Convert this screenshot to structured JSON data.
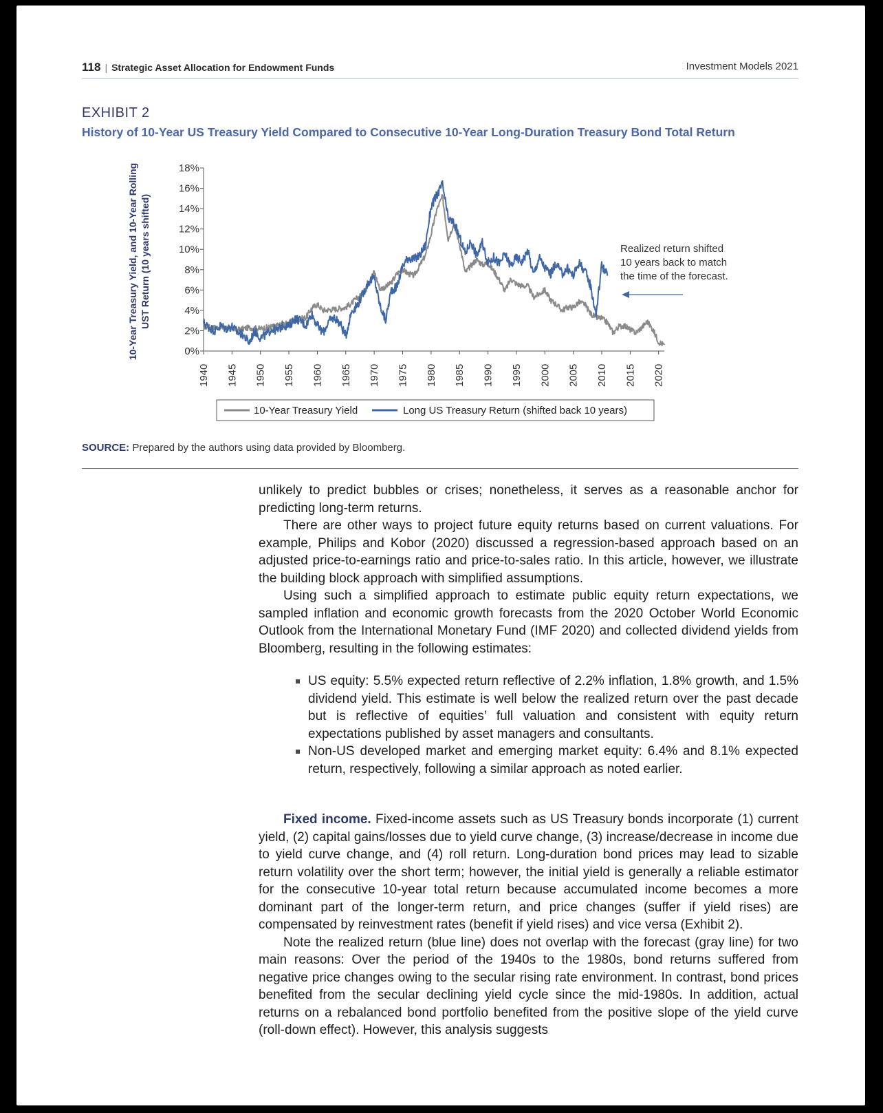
{
  "header": {
    "page_number": "118",
    "running_title": "Strategic Asset Allocation for Endowment Funds",
    "journal": "Investment Models 2021"
  },
  "exhibit": {
    "label": "EXHIBIT 2",
    "title": "History of 10-Year US Treasury Yield Compared to Consecutive 10-Year Long-Duration Treasury Bond Total Return"
  },
  "chart_data": {
    "type": "line",
    "ylabel_line1": "10-Year Treasury Yield, and 10-Year Rolling",
    "ylabel_line2": "UST Return (10 years shifted)",
    "ylim": [
      0,
      18
    ],
    "yticks": [
      "0%",
      "2%",
      "4%",
      "6%",
      "8%",
      "10%",
      "12%",
      "14%",
      "16%",
      "18%"
    ],
    "xlim": [
      1940,
      2021
    ],
    "xticks": [
      "1940",
      "1945",
      "1950",
      "1955",
      "1960",
      "1965",
      "1970",
      "1975",
      "1980",
      "1985",
      "1990",
      "1995",
      "2000",
      "2005",
      "2010",
      "2015",
      "2020"
    ],
    "legend_position": "bottom",
    "annotation": {
      "line1": "Realized return shifted",
      "line2": "10 years back to match",
      "line3": "the time of the forecast."
    },
    "series": [
      {
        "name": "10-Year Treasury Yield",
        "color": "#8a8a8a",
        "points": [
          [
            1940,
            2.4
          ],
          [
            1942,
            2.3
          ],
          [
            1944,
            2.3
          ],
          [
            1946,
            2.1
          ],
          [
            1948,
            2.3
          ],
          [
            1950,
            2.2
          ],
          [
            1952,
            2.4
          ],
          [
            1954,
            2.6
          ],
          [
            1956,
            3.0
          ],
          [
            1958,
            3.3
          ],
          [
            1959,
            4.2
          ],
          [
            1960,
            4.6
          ],
          [
            1961,
            4.0
          ],
          [
            1963,
            4.1
          ],
          [
            1965,
            4.3
          ],
          [
            1966,
            4.7
          ],
          [
            1967,
            5.2
          ],
          [
            1968,
            5.6
          ],
          [
            1969,
            6.7
          ],
          [
            1970,
            7.8
          ],
          [
            1971,
            6.1
          ],
          [
            1972,
            6.3
          ],
          [
            1973,
            6.7
          ],
          [
            1974,
            7.6
          ],
          [
            1975,
            8.0
          ],
          [
            1976,
            7.6
          ],
          [
            1977,
            7.4
          ],
          [
            1978,
            8.4
          ],
          [
            1979,
            9.4
          ],
          [
            1980,
            11.5
          ],
          [
            1981,
            13.9
          ],
          [
            1982,
            15.2
          ],
          [
            1983,
            11.0
          ],
          [
            1984,
            12.5
          ],
          [
            1985,
            10.6
          ],
          [
            1986,
            7.7
          ],
          [
            1987,
            8.4
          ],
          [
            1988,
            9.0
          ],
          [
            1989,
            8.5
          ],
          [
            1990,
            8.6
          ],
          [
            1991,
            7.9
          ],
          [
            1992,
            7.0
          ],
          [
            1993,
            5.9
          ],
          [
            1994,
            7.1
          ],
          [
            1995,
            6.6
          ],
          [
            1996,
            6.4
          ],
          [
            1997,
            6.4
          ],
          [
            1998,
            5.3
          ],
          [
            1999,
            5.6
          ],
          [
            2000,
            6.0
          ],
          [
            2001,
            5.0
          ],
          [
            2002,
            4.6
          ],
          [
            2003,
            4.0
          ],
          [
            2004,
            4.3
          ],
          [
            2005,
            4.3
          ],
          [
            2006,
            4.8
          ],
          [
            2007,
            4.6
          ],
          [
            2008,
            3.7
          ],
          [
            2009,
            3.3
          ],
          [
            2010,
            3.2
          ],
          [
            2011,
            2.8
          ],
          [
            2012,
            1.8
          ],
          [
            2013,
            2.4
          ],
          [
            2014,
            2.5
          ],
          [
            2015,
            2.1
          ],
          [
            2016,
            1.8
          ],
          [
            2017,
            2.3
          ],
          [
            2018,
            2.9
          ],
          [
            2019,
            2.1
          ],
          [
            2020,
            0.9
          ],
          [
            2021,
            0.6
          ]
        ]
      },
      {
        "name": "Long US Treasury Return (shifted back 10 years)",
        "color": "#3f67a6",
        "points": [
          [
            1940,
            2.8
          ],
          [
            1941,
            2.3
          ],
          [
            1942,
            2.0
          ],
          [
            1943,
            2.5
          ],
          [
            1944,
            2.2
          ],
          [
            1945,
            2.4
          ],
          [
            1946,
            1.8
          ],
          [
            1947,
            1.6
          ],
          [
            1948,
            0.8
          ],
          [
            1949,
            2.0
          ],
          [
            1950,
            1.3
          ],
          [
            1951,
            1.6
          ],
          [
            1952,
            2.2
          ],
          [
            1953,
            2.0
          ],
          [
            1954,
            2.6
          ],
          [
            1955,
            2.4
          ],
          [
            1956,
            3.2
          ],
          [
            1957,
            3.0
          ],
          [
            1958,
            2.5
          ],
          [
            1959,
            3.7
          ],
          [
            1960,
            2.5
          ],
          [
            1961,
            1.8
          ],
          [
            1962,
            2.9
          ],
          [
            1963,
            3.3
          ],
          [
            1964,
            2.7
          ],
          [
            1965,
            1.5
          ],
          [
            1966,
            3.9
          ],
          [
            1967,
            4.5
          ],
          [
            1968,
            5.6
          ],
          [
            1969,
            6.8
          ],
          [
            1970,
            7.2
          ],
          [
            1971,
            4.5
          ],
          [
            1972,
            3.0
          ],
          [
            1973,
            6.0
          ],
          [
            1974,
            6.3
          ],
          [
            1975,
            8.4
          ],
          [
            1976,
            9.2
          ],
          [
            1977,
            9.0
          ],
          [
            1978,
            9.4
          ],
          [
            1979,
            10.4
          ],
          [
            1980,
            14.2
          ],
          [
            1981,
            15.3
          ],
          [
            1982,
            16.4
          ],
          [
            1983,
            13.0
          ],
          [
            1984,
            12.6
          ],
          [
            1985,
            11.2
          ],
          [
            1986,
            9.6
          ],
          [
            1987,
            10.8
          ],
          [
            1988,
            9.4
          ],
          [
            1989,
            10.6
          ],
          [
            1990,
            8.7
          ],
          [
            1991,
            9.2
          ],
          [
            1992,
            8.6
          ],
          [
            1993,
            9.5
          ],
          [
            1994,
            8.4
          ],
          [
            1995,
            9.2
          ],
          [
            1996,
            8.8
          ],
          [
            1997,
            9.9
          ],
          [
            1998,
            7.5
          ],
          [
            1999,
            9.2
          ],
          [
            2000,
            8.2
          ],
          [
            2001,
            7.6
          ],
          [
            2002,
            8.6
          ],
          [
            2003,
            7.6
          ],
          [
            2004,
            8.1
          ],
          [
            2005,
            7.4
          ],
          [
            2006,
            8.7
          ],
          [
            2007,
            7.9
          ],
          [
            2008,
            6.5
          ],
          [
            2009,
            3.6
          ],
          [
            2010,
            8.5
          ],
          [
            2011,
            7.4
          ]
        ]
      }
    ]
  },
  "source": {
    "label": "SOURCE:",
    "text": "Prepared by the authors using data provided by Bloomberg."
  },
  "body": {
    "p1": "unlikely to predict bubbles or crises; nonetheless, it serves as a reasonable anchor for predicting long-term returns.",
    "p2": "There are other ways to project future equity returns based on current valuations. For example, Philips and Kobor (2020) discussed a regression-based approach based on an adjusted price-to-earnings ratio and price-to-sales ratio. In this article, however, we illustrate the building block approach with simplified assumptions.",
    "p3": "Using such a simplified approach to estimate public equity return expectations, we sampled inflation and economic growth forecasts from the 2020 October World Economic Outlook from the International Monetary Fund (IMF 2020) and collected dividend yields from Bloomberg, resulting in the following estimates:",
    "bullets": [
      "US equity: 5.5% expected return reflective of 2.2% inflation, 1.8% growth, and 1.5% dividend yield. This estimate is well below the realized return over the past decade but is reflective of equities’ full valuation and consistent with equity return expectations published by asset managers and consultants.",
      "Non-US developed market and emerging market equity: 6.4% and 8.1% expected return, respectively, following a similar approach as noted earlier."
    ],
    "fixed_income_heading": "Fixed income.",
    "p4": " Fixed-income assets such as US Treasury bonds incorporate (1) current yield, (2) capital gains/losses due to yield curve change, (3) increase/decrease in income due to yield curve change, and (4) roll return. Long-duration bond prices may lead to sizable return volatility over the short term; however, the initial yield is generally a reliable estimator for the consecutive 10-year total return because accumulated income becomes a more dominant part of the longer-term return, and price changes (suffer if yield rises) are compensated by reinvestment rates (benefit if yield rises) and vice versa (Exhibit 2).",
    "p5": "Note the realized return (blue line) does not overlap with the forecast (gray line) for two main reasons: Over the period of the 1940s to the 1980s, bond returns suffered from negative price changes owing to the secular rising rate environment. In contrast, bond prices benefited from the secular declining yield cycle since the mid-1980s. In addition, actual returns on a rebalanced bond portfolio benefited from the positive slope of the yield curve (roll-down effect). However, this analysis suggests"
  }
}
